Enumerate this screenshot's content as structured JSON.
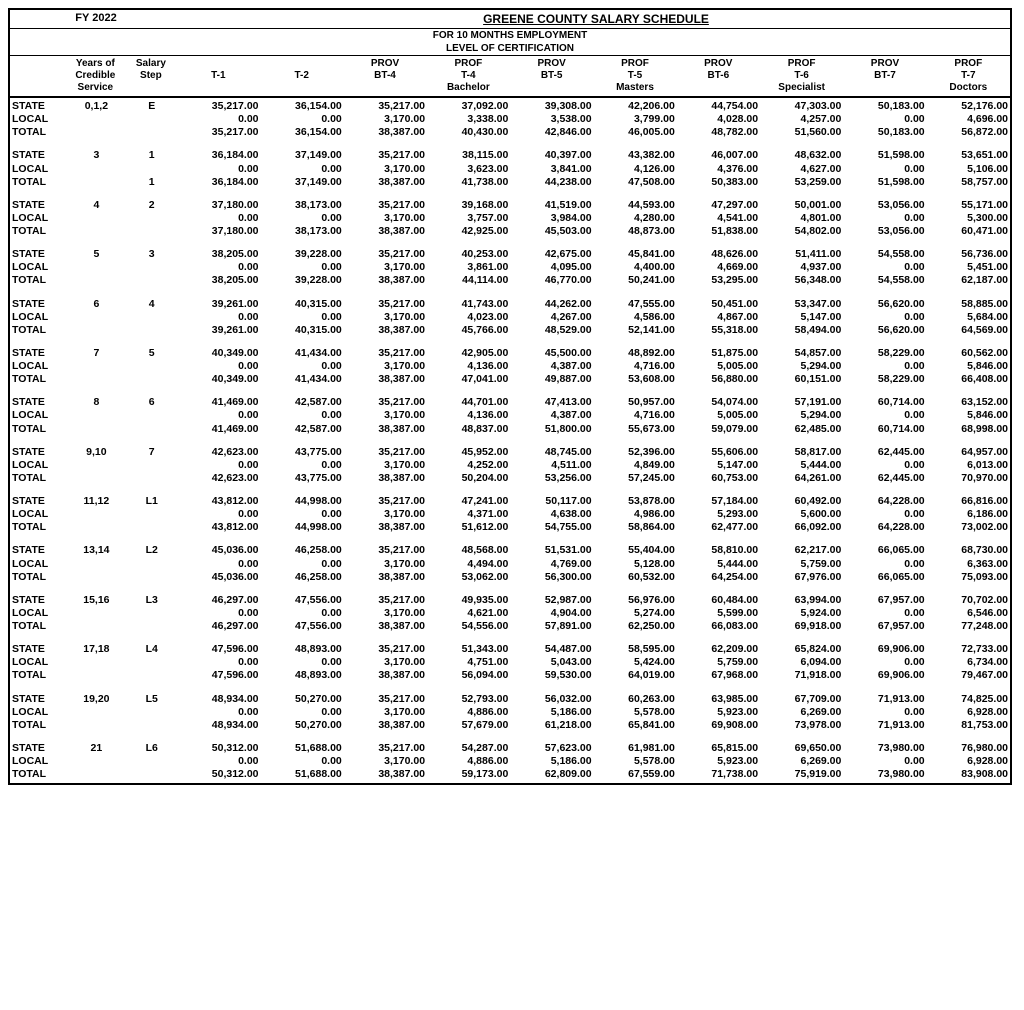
{
  "header": {
    "fy": "FY 2022",
    "title": "GREENE COUNTY SALARY SCHEDULE",
    "sub1": "FOR 10 MONTHS EMPLOYMENT",
    "sub2": "LEVEL OF CERTIFICATION"
  },
  "columns": {
    "years": "Years of\nCredible\nService",
    "step": "Salary\nStep",
    "cols": [
      {
        "top": "",
        "mid": "T-1",
        "bot": ""
      },
      {
        "top": "",
        "mid": "T-2",
        "bot": ""
      },
      {
        "top": "PROV",
        "mid": "BT-4",
        "bot": ""
      },
      {
        "top": "PROF",
        "mid": "T-4",
        "bot": "Bachelor"
      },
      {
        "top": "PROV",
        "mid": "BT-5",
        "bot": ""
      },
      {
        "top": "PROF",
        "mid": "T-5",
        "bot": "Masters"
      },
      {
        "top": "PROV",
        "mid": "BT-6",
        "bot": ""
      },
      {
        "top": "PROF",
        "mid": "T-6",
        "bot": "Specialist"
      },
      {
        "top": "PROV",
        "mid": "BT-7",
        "bot": ""
      },
      {
        "top": "PROF",
        "mid": "T-7",
        "bot": "Doctors"
      }
    ]
  },
  "rowLabels": [
    "STATE",
    "LOCAL",
    "TOTAL"
  ],
  "blocks": [
    {
      "years": "0,1,2",
      "step": "E",
      "step2": "",
      "state": [
        "35,217.00",
        "36,154.00",
        "35,217.00",
        "37,092.00",
        "39,308.00",
        "42,206.00",
        "44,754.00",
        "47,303.00",
        "50,183.00",
        "52,176.00"
      ],
      "local": [
        "0.00",
        "0.00",
        "3,170.00",
        "3,338.00",
        "3,538.00",
        "3,799.00",
        "4,028.00",
        "4,257.00",
        "0.00",
        "4,696.00"
      ],
      "total": [
        "35,217.00",
        "36,154.00",
        "38,387.00",
        "40,430.00",
        "42,846.00",
        "46,005.00",
        "48,782.00",
        "51,560.00",
        "50,183.00",
        "56,872.00"
      ]
    },
    {
      "years": "3",
      "step": "1",
      "step2": "1",
      "state": [
        "36,184.00",
        "37,149.00",
        "35,217.00",
        "38,115.00",
        "40,397.00",
        "43,382.00",
        "46,007.00",
        "48,632.00",
        "51,598.00",
        "53,651.00"
      ],
      "local": [
        "0.00",
        "0.00",
        "3,170.00",
        "3,623.00",
        "3,841.00",
        "4,126.00",
        "4,376.00",
        "4,627.00",
        "0.00",
        "5,106.00"
      ],
      "total": [
        "36,184.00",
        "37,149.00",
        "38,387.00",
        "41,738.00",
        "44,238.00",
        "47,508.00",
        "50,383.00",
        "53,259.00",
        "51,598.00",
        "58,757.00"
      ]
    },
    {
      "years": "4",
      "step": "2",
      "step2": "",
      "state": [
        "37,180.00",
        "38,173.00",
        "35,217.00",
        "39,168.00",
        "41,519.00",
        "44,593.00",
        "47,297.00",
        "50,001.00",
        "53,056.00",
        "55,171.00"
      ],
      "local": [
        "0.00",
        "0.00",
        "3,170.00",
        "3,757.00",
        "3,984.00",
        "4,280.00",
        "4,541.00",
        "4,801.00",
        "0.00",
        "5,300.00"
      ],
      "total": [
        "37,180.00",
        "38,173.00",
        "38,387.00",
        "42,925.00",
        "45,503.00",
        "48,873.00",
        "51,838.00",
        "54,802.00",
        "53,056.00",
        "60,471.00"
      ]
    },
    {
      "years": "5",
      "step": "3",
      "step2": "",
      "state": [
        "38,205.00",
        "39,228.00",
        "35,217.00",
        "40,253.00",
        "42,675.00",
        "45,841.00",
        "48,626.00",
        "51,411.00",
        "54,558.00",
        "56,736.00"
      ],
      "local": [
        "0.00",
        "0.00",
        "3,170.00",
        "3,861.00",
        "4,095.00",
        "4,400.00",
        "4,669.00",
        "4,937.00",
        "0.00",
        "5,451.00"
      ],
      "total": [
        "38,205.00",
        "39,228.00",
        "38,387.00",
        "44,114.00",
        "46,770.00",
        "50,241.00",
        "53,295.00",
        "56,348.00",
        "54,558.00",
        "62,187.00"
      ]
    },
    {
      "years": "6",
      "step": "4",
      "step2": "",
      "state": [
        "39,261.00",
        "40,315.00",
        "35,217.00",
        "41,743.00",
        "44,262.00",
        "47,555.00",
        "50,451.00",
        "53,347.00",
        "56,620.00",
        "58,885.00"
      ],
      "local": [
        "0.00",
        "0.00",
        "3,170.00",
        "4,023.00",
        "4,267.00",
        "4,586.00",
        "4,867.00",
        "5,147.00",
        "0.00",
        "5,684.00"
      ],
      "total": [
        "39,261.00",
        "40,315.00",
        "38,387.00",
        "45,766.00",
        "48,529.00",
        "52,141.00",
        "55,318.00",
        "58,494.00",
        "56,620.00",
        "64,569.00"
      ]
    },
    {
      "years": "7",
      "step": "5",
      "step2": "",
      "state": [
        "40,349.00",
        "41,434.00",
        "35,217.00",
        "42,905.00",
        "45,500.00",
        "48,892.00",
        "51,875.00",
        "54,857.00",
        "58,229.00",
        "60,562.00"
      ],
      "local": [
        "0.00",
        "0.00",
        "3,170.00",
        "4,136.00",
        "4,387.00",
        "4,716.00",
        "5,005.00",
        "5,294.00",
        "0.00",
        "5,846.00"
      ],
      "total": [
        "40,349.00",
        "41,434.00",
        "38,387.00",
        "47,041.00",
        "49,887.00",
        "53,608.00",
        "56,880.00",
        "60,151.00",
        "58,229.00",
        "66,408.00"
      ]
    },
    {
      "years": "8",
      "step": "6",
      "step2": "",
      "state": [
        "41,469.00",
        "42,587.00",
        "35,217.00",
        "44,701.00",
        "47,413.00",
        "50,957.00",
        "54,074.00",
        "57,191.00",
        "60,714.00",
        "63,152.00"
      ],
      "local": [
        "0.00",
        "0.00",
        "3,170.00",
        "4,136.00",
        "4,387.00",
        "4,716.00",
        "5,005.00",
        "5,294.00",
        "0.00",
        "5,846.00"
      ],
      "total": [
        "41,469.00",
        "42,587.00",
        "38,387.00",
        "48,837.00",
        "51,800.00",
        "55,673.00",
        "59,079.00",
        "62,485.00",
        "60,714.00",
        "68,998.00"
      ]
    },
    {
      "years": "9,10",
      "step": "7",
      "step2": "",
      "state": [
        "42,623.00",
        "43,775.00",
        "35,217.00",
        "45,952.00",
        "48,745.00",
        "52,396.00",
        "55,606.00",
        "58,817.00",
        "62,445.00",
        "64,957.00"
      ],
      "local": [
        "0.00",
        "0.00",
        "3,170.00",
        "4,252.00",
        "4,511.00",
        "4,849.00",
        "5,147.00",
        "5,444.00",
        "0.00",
        "6,013.00"
      ],
      "total": [
        "42,623.00",
        "43,775.00",
        "38,387.00",
        "50,204.00",
        "53,256.00",
        "57,245.00",
        "60,753.00",
        "64,261.00",
        "62,445.00",
        "70,970.00"
      ]
    },
    {
      "years": "11,12",
      "step": "L1",
      "step2": "",
      "state": [
        "43,812.00",
        "44,998.00",
        "35,217.00",
        "47,241.00",
        "50,117.00",
        "53,878.00",
        "57,184.00",
        "60,492.00",
        "64,228.00",
        "66,816.00"
      ],
      "local": [
        "0.00",
        "0.00",
        "3,170.00",
        "4,371.00",
        "4,638.00",
        "4,986.00",
        "5,293.00",
        "5,600.00",
        "0.00",
        "6,186.00"
      ],
      "total": [
        "43,812.00",
        "44,998.00",
        "38,387.00",
        "51,612.00",
        "54,755.00",
        "58,864.00",
        "62,477.00",
        "66,092.00",
        "64,228.00",
        "73,002.00"
      ]
    },
    {
      "years": "13,14",
      "step": "L2",
      "step2": "",
      "state": [
        "45,036.00",
        "46,258.00",
        "35,217.00",
        "48,568.00",
        "51,531.00",
        "55,404.00",
        "58,810.00",
        "62,217.00",
        "66,065.00",
        "68,730.00"
      ],
      "local": [
        "0.00",
        "0.00",
        "3,170.00",
        "4,494.00",
        "4,769.00",
        "5,128.00",
        "5,444.00",
        "5,759.00",
        "0.00",
        "6,363.00"
      ],
      "total": [
        "45,036.00",
        "46,258.00",
        "38,387.00",
        "53,062.00",
        "56,300.00",
        "60,532.00",
        "64,254.00",
        "67,976.00",
        "66,065.00",
        "75,093.00"
      ]
    },
    {
      "years": "15,16",
      "step": "L3",
      "step2": "",
      "state": [
        "46,297.00",
        "47,556.00",
        "35,217.00",
        "49,935.00",
        "52,987.00",
        "56,976.00",
        "60,484.00",
        "63,994.00",
        "67,957.00",
        "70,702.00"
      ],
      "local": [
        "0.00",
        "0.00",
        "3,170.00",
        "4,621.00",
        "4,904.00",
        "5,274.00",
        "5,599.00",
        "5,924.00",
        "0.00",
        "6,546.00"
      ],
      "total": [
        "46,297.00",
        "47,556.00",
        "38,387.00",
        "54,556.00",
        "57,891.00",
        "62,250.00",
        "66,083.00",
        "69,918.00",
        "67,957.00",
        "77,248.00"
      ]
    },
    {
      "years": "17,18",
      "step": "L4",
      "step2": "",
      "state": [
        "47,596.00",
        "48,893.00",
        "35,217.00",
        "51,343.00",
        "54,487.00",
        "58,595.00",
        "62,209.00",
        "65,824.00",
        "69,906.00",
        "72,733.00"
      ],
      "local": [
        "0.00",
        "0.00",
        "3,170.00",
        "4,751.00",
        "5,043.00",
        "5,424.00",
        "5,759.00",
        "6,094.00",
        "0.00",
        "6,734.00"
      ],
      "total": [
        "47,596.00",
        "48,893.00",
        "38,387.00",
        "56,094.00",
        "59,530.00",
        "64,019.00",
        "67,968.00",
        "71,918.00",
        "69,906.00",
        "79,467.00"
      ]
    },
    {
      "years": "19,20",
      "step": "L5",
      "step2": "",
      "state": [
        "48,934.00",
        "50,270.00",
        "35,217.00",
        "52,793.00",
        "56,032.00",
        "60,263.00",
        "63,985.00",
        "67,709.00",
        "71,913.00",
        "74,825.00"
      ],
      "local": [
        "0.00",
        "0.00",
        "3,170.00",
        "4,886.00",
        "5,186.00",
        "5,578.00",
        "5,923.00",
        "6,269.00",
        "0.00",
        "6,928.00"
      ],
      "total": [
        "48,934.00",
        "50,270.00",
        "38,387.00",
        "57,679.00",
        "61,218.00",
        "65,841.00",
        "69,908.00",
        "73,978.00",
        "71,913.00",
        "81,753.00"
      ]
    },
    {
      "years": "21",
      "step": "L6",
      "step2": "",
      "state": [
        "50,312.00",
        "51,688.00",
        "35,217.00",
        "54,287.00",
        "57,623.00",
        "61,981.00",
        "65,815.00",
        "69,650.00",
        "73,980.00",
        "76,980.00"
      ],
      "local": [
        "0.00",
        "0.00",
        "3,170.00",
        "4,886.00",
        "5,186.00",
        "5,578.00",
        "5,923.00",
        "6,269.00",
        "0.00",
        "6,928.00"
      ],
      "total": [
        "50,312.00",
        "51,688.00",
        "38,387.00",
        "59,173.00",
        "62,809.00",
        "67,559.00",
        "71,738.00",
        "75,919.00",
        "73,980.00",
        "83,908.00"
      ]
    }
  ]
}
